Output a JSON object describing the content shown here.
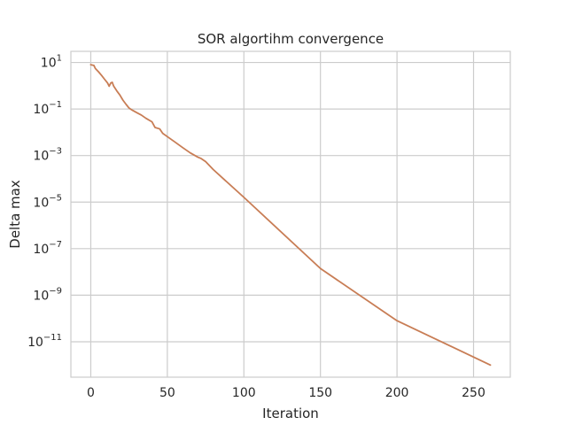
{
  "chart_data": {
    "type": "line",
    "title": "SOR algortihm convergence",
    "xlabel": "Iteration",
    "ylabel": "Delta max",
    "xlim": [
      -13,
      274
    ],
    "ylim": [
      3e-13,
      30
    ],
    "yscale": "log",
    "grid": true,
    "xticks": [
      0,
      50,
      100,
      150,
      200,
      250
    ],
    "xtick_labels": [
      "0",
      "50",
      "100",
      "150",
      "200",
      "250"
    ],
    "yticks": [
      {
        "value": 10,
        "base": "10",
        "exp": "1"
      },
      {
        "value": 0.1,
        "base": "10",
        "exp": "−1"
      },
      {
        "value": 0.001,
        "base": "10",
        "exp": "−3"
      },
      {
        "value": 1e-05,
        "base": "10",
        "exp": "−5"
      },
      {
        "value": 1e-07,
        "base": "10",
        "exp": "−7"
      },
      {
        "value": 1e-09,
        "base": "10",
        "exp": "−9"
      },
      {
        "value": 1e-11,
        "base": "10",
        "exp": "−11"
      }
    ],
    "series": [
      {
        "color": "#c87d55",
        "x": [
          0,
          2,
          3,
          5,
          7,
          9,
          11,
          12,
          13,
          14,
          15,
          17,
          19,
          21,
          23,
          25,
          27,
          30,
          33,
          36,
          40,
          42,
          45,
          47,
          50,
          55,
          60,
          65,
          70,
          72,
          75,
          80,
          100,
          150,
          200,
          261
        ],
        "y": [
          8,
          7.5,
          5.5,
          4,
          2.8,
          1.9,
          1.3,
          0.95,
          1.3,
          1.4,
          0.95,
          0.6,
          0.4,
          0.24,
          0.16,
          0.11,
          0.09,
          0.07,
          0.055,
          0.04,
          0.028,
          0.016,
          0.014,
          0.009,
          0.0065,
          0.0038,
          0.0022,
          0.0013,
          0.00085,
          0.00075,
          0.00055,
          0.00025,
          1.6e-05,
          1.4e-08,
          8e-11,
          1e-12
        ]
      }
    ]
  }
}
